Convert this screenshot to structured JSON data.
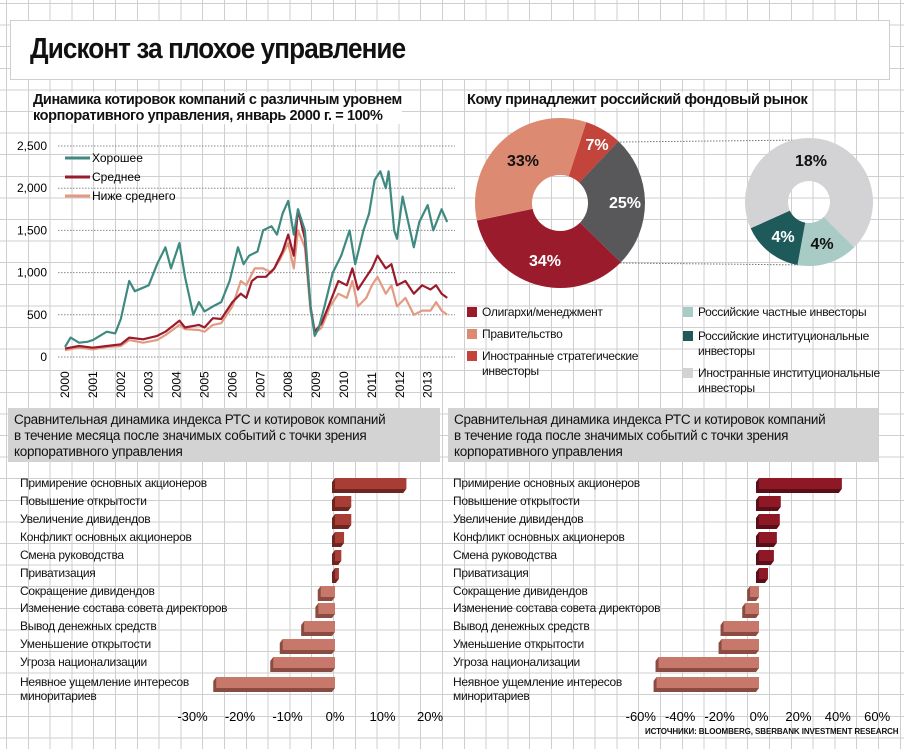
{
  "title": "Дисконт за плохое управление",
  "line_section": {
    "title_line1": "Динамика котировок компаний с различным уровнем",
    "title_line2": "корпоративного управления, январь 2000 г. = 100%"
  },
  "pie_section": {
    "title": "Кому принадлежит российский фондовый рынок"
  },
  "bar_left_header": {
    "line1": "Сравнительная динамика индекса РТС и котировок компаний",
    "line2": "в течение месяца после значимых событий с точки зрения",
    "line3": "корпоративного управления"
  },
  "bar_right_header": {
    "line1": "Сравнительная динамика индекса РТС и котировок компаний",
    "line2": "в течение года после значимых событий с точки зрения",
    "line3": "корпоративного управления"
  },
  "source": "ИСТОЧНИКИ: BLOOMBERG, SBERBANK INVESTMENT RESEARCH",
  "chart_data": [
    {
      "type": "line",
      "ylim": [
        0,
        2500
      ],
      "yticks": [
        0,
        500,
        1000,
        1500,
        2000,
        2500
      ],
      "ytick_labels": [
        "0",
        "500",
        "1,000",
        "1,500",
        "2,000",
        "2,500"
      ],
      "xticks": [
        "2000",
        "2001",
        "2002",
        "2003",
        "2004",
        "2005",
        "2006",
        "2007",
        "2008",
        "2009",
        "2010",
        "2011",
        "2012",
        "2013"
      ],
      "grid": "horizontal dotted",
      "legend": "top-left",
      "series": [
        {
          "name": "Хорошее",
          "color": "#3f8a80",
          "points": [
            [
              2000,
              120
            ],
            [
              2000.2,
              230
            ],
            [
              2000.5,
              170
            ],
            [
              2000.8,
              180
            ],
            [
              2001,
              200
            ],
            [
              2001.5,
              300
            ],
            [
              2001.8,
              280
            ],
            [
              2002,
              450
            ],
            [
              2002.3,
              900
            ],
            [
              2002.5,
              780
            ],
            [
              2003,
              850
            ],
            [
              2003.3,
              1100
            ],
            [
              2003.6,
              1300
            ],
            [
              2003.8,
              1050
            ],
            [
              2004.1,
              1350
            ],
            [
              2004.3,
              950
            ],
            [
              2004.6,
              500
            ],
            [
              2004.8,
              650
            ],
            [
              2005,
              540
            ],
            [
              2005.3,
              600
            ],
            [
              2005.6,
              650
            ],
            [
              2005.9,
              900
            ],
            [
              2006.2,
              1300
            ],
            [
              2006.4,
              1100
            ],
            [
              2006.6,
              1200
            ],
            [
              2006.9,
              1250
            ],
            [
              2007.1,
              1500
            ],
            [
              2007.4,
              1550
            ],
            [
              2007.6,
              1450
            ],
            [
              2007.8,
              1700
            ],
            [
              2008,
              1850
            ],
            [
              2008.2,
              1450
            ],
            [
              2008.35,
              1750
            ],
            [
              2008.6,
              1500
            ],
            [
              2008.8,
              600
            ],
            [
              2008.95,
              250
            ],
            [
              2009.1,
              350
            ],
            [
              2009.3,
              600
            ],
            [
              2009.6,
              1000
            ],
            [
              2009.9,
              1200
            ],
            [
              2010.2,
              1500
            ],
            [
              2010.4,
              1100
            ],
            [
              2010.7,
              1500
            ],
            [
              2010.9,
              1700
            ],
            [
              2011.1,
              2100
            ],
            [
              2011.3,
              2200
            ],
            [
              2011.5,
              2000
            ],
            [
              2011.6,
              2200
            ],
            [
              2011.8,
              1500
            ],
            [
              2011.9,
              1400
            ],
            [
              2012.1,
              1900
            ],
            [
              2012.3,
              1600
            ],
            [
              2012.5,
              1300
            ],
            [
              2012.7,
              1600
            ],
            [
              2013,
              1800
            ],
            [
              2013.2,
              1500
            ],
            [
              2013.5,
              1750
            ],
            [
              2013.7,
              1600
            ]
          ]
        },
        {
          "name": "Среднее",
          "color": "#9a1b2c",
          "points": [
            [
              2000,
              100
            ],
            [
              2000.5,
              130
            ],
            [
              2001,
              110
            ],
            [
              2001.5,
              130
            ],
            [
              2002,
              150
            ],
            [
              2002.3,
              230
            ],
            [
              2002.8,
              210
            ],
            [
              2003.3,
              250
            ],
            [
              2003.6,
              300
            ],
            [
              2004.1,
              430
            ],
            [
              2004.3,
              350
            ],
            [
              2004.8,
              380
            ],
            [
              2005,
              350
            ],
            [
              2005.3,
              460
            ],
            [
              2005.6,
              450
            ],
            [
              2006,
              650
            ],
            [
              2006.3,
              750
            ],
            [
              2006.5,
              700
            ],
            [
              2006.7,
              900
            ],
            [
              2006.9,
              950
            ],
            [
              2007.2,
              950
            ],
            [
              2007.5,
              1050
            ],
            [
              2007.8,
              1250
            ],
            [
              2008,
              1450
            ],
            [
              2008.2,
              1200
            ],
            [
              2008.35,
              1750
            ],
            [
              2008.6,
              1400
            ],
            [
              2008.8,
              600
            ],
            [
              2008.95,
              300
            ],
            [
              2009.2,
              400
            ],
            [
              2009.5,
              650
            ],
            [
              2009.8,
              900
            ],
            [
              2010.1,
              850
            ],
            [
              2010.3,
              1050
            ],
            [
              2010.5,
              800
            ],
            [
              2010.8,
              950
            ],
            [
              2011,
              1050
            ],
            [
              2011.2,
              1200
            ],
            [
              2011.5,
              1050
            ],
            [
              2011.7,
              1100
            ],
            [
              2011.9,
              850
            ],
            [
              2012.2,
              900
            ],
            [
              2012.5,
              750
            ],
            [
              2012.8,
              850
            ],
            [
              2013.1,
              800
            ],
            [
              2013.3,
              850
            ],
            [
              2013.5,
              750
            ],
            [
              2013.7,
              700
            ]
          ]
        },
        {
          "name": "Ниже среднего",
          "color": "#e39a82",
          "points": [
            [
              2000,
              80
            ],
            [
              2000.5,
              110
            ],
            [
              2001,
              90
            ],
            [
              2001.5,
              120
            ],
            [
              2002,
              130
            ],
            [
              2002.3,
              200
            ],
            [
              2002.8,
              170
            ],
            [
              2003.3,
              200
            ],
            [
              2003.6,
              260
            ],
            [
              2004.1,
              380
            ],
            [
              2004.3,
              330
            ],
            [
              2004.8,
              320
            ],
            [
              2005,
              300
            ],
            [
              2005.3,
              380
            ],
            [
              2005.6,
              400
            ],
            [
              2006,
              600
            ],
            [
              2006.3,
              900
            ],
            [
              2006.5,
              850
            ],
            [
              2006.8,
              1050
            ],
            [
              2007.1,
              1050
            ],
            [
              2007.4,
              1000
            ],
            [
              2007.7,
              1150
            ],
            [
              2008,
              1350
            ],
            [
              2008.2,
              1050
            ],
            [
              2008.35,
              1500
            ],
            [
              2008.6,
              1300
            ],
            [
              2008.8,
              550
            ],
            [
              2008.95,
              280
            ],
            [
              2009.2,
              350
            ],
            [
              2009.5,
              600
            ],
            [
              2009.8,
              750
            ],
            [
              2010.1,
              700
            ],
            [
              2010.3,
              900
            ],
            [
              2010.5,
              600
            ],
            [
              2010.8,
              700
            ],
            [
              2011,
              850
            ],
            [
              2011.2,
              950
            ],
            [
              2011.5,
              750
            ],
            [
              2011.7,
              850
            ],
            [
              2011.9,
              600
            ],
            [
              2012.2,
              700
            ],
            [
              2012.5,
              500
            ],
            [
              2012.8,
              550
            ],
            [
              2013.1,
              550
            ],
            [
              2013.3,
              650
            ],
            [
              2013.5,
              550
            ],
            [
              2013.7,
              500
            ]
          ]
        }
      ]
    },
    {
      "type": "pie",
      "donut": true,
      "slices": [
        {
          "label": "Иностранные стратегические инвесторы",
          "value": 7,
          "text": "7%",
          "color": "#c2443a"
        },
        {
          "label": "",
          "value": 25,
          "text": "25%",
          "color": "#58585a"
        },
        {
          "label": "Олигархи/менеджмент",
          "value": 34,
          "text": "34%",
          "color": "#9a1b2c"
        },
        {
          "label": "Правительство",
          "value": 33,
          "text": "33%",
          "color": "#dd8a72"
        }
      ]
    },
    {
      "type": "pie",
      "donut": true,
      "slices": [
        {
          "label": "Российские частные инвесторы",
          "value": 4,
          "text": "4%",
          "color": "#a9cbc5"
        },
        {
          "label": "Российские институциональные инвесторы",
          "value": 4,
          "text": "4%",
          "color": "#1f5a5a"
        },
        {
          "label": "Иностранные институциональные инвесторы",
          "value": 18,
          "text": "18%",
          "color": "#d3d3d5"
        }
      ]
    },
    {
      "type": "bar",
      "orientation": "horizontal",
      "categories": [
        "Примирение основных акционеров",
        "Повышение открытости",
        "Увеличение дивидендов",
        "Конфликт основных акционеров",
        "Смена руководства",
        "Приватизация",
        "Сокращение дивидендов",
        "Изменение состава совета директоров",
        "Вывод денежных средств",
        "Уменьшение открытости",
        "Угроза национализации",
        "Неявное ущемление интересов миноритариев"
      ],
      "values": [
        15,
        3.4,
        3.4,
        1.9,
        1.3,
        0.8,
        -3,
        -3.5,
        -6.5,
        -11,
        -13,
        -25
      ],
      "xlim": [
        -30,
        20
      ],
      "xtick_labels": [
        "-30%",
        "-20%",
        "-10%",
        "0%",
        "10%",
        "20%"
      ],
      "colors": {
        "positive": "#a83d35",
        "negative": "#c8786a"
      }
    },
    {
      "type": "bar",
      "orientation": "horizontal",
      "categories": [
        "Примирение основных акционеров",
        "Повышение открытости",
        "Увеличение дивидендов",
        "Конфликт основных акционеров",
        "Смена руководства",
        "Приватизация",
        "Сокращение дивидендов",
        "Изменение состава совета директоров",
        "Вывод денежных средств",
        "Уменьшение открытости",
        "Угроза национализации",
        "Неявное ущемление интересов миноритариев"
      ],
      "values": [
        42,
        11,
        10.5,
        9,
        7.5,
        4.5,
        -4.5,
        -7,
        -18,
        -19,
        -51,
        -52
      ],
      "xlim": [
        -60,
        60
      ],
      "xtick_labels": [
        "-60%",
        "-40%",
        "-20%",
        "0%",
        "20%",
        "40%",
        "60%"
      ],
      "colors": {
        "positive": "#8e1826",
        "negative": "#c8786a"
      }
    }
  ]
}
